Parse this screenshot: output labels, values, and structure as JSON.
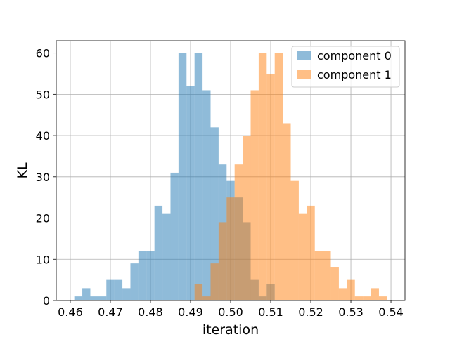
{
  "chart_data": {
    "type": "bar",
    "title": "",
    "xlabel": "iteration",
    "ylabel": "KL",
    "xlim": [
      0.4565,
      0.5435
    ],
    "ylim": [
      0,
      63
    ],
    "xticks": [
      "0.46",
      "0.47",
      "0.48",
      "0.49",
      "0.50",
      "0.51",
      "0.52",
      "0.53",
      "0.54"
    ],
    "xtick_values": [
      0.46,
      0.47,
      0.48,
      0.49,
      0.5,
      0.51,
      0.52,
      0.53,
      0.54
    ],
    "yticks": [
      "0",
      "10",
      "20",
      "30",
      "40",
      "50",
      "60"
    ],
    "ytick_values": [
      0,
      10,
      20,
      30,
      40,
      50,
      60
    ],
    "grid": true,
    "legend_position": "upper right",
    "bin_width": 0.002,
    "series": [
      {
        "name": "component 0",
        "color": "#1f77b4",
        "opacity": 0.5,
        "bin_start": 0.461,
        "counts": [
          1,
          3,
          1,
          1,
          5,
          5,
          3,
          9,
          12,
          12,
          23,
          21,
          31,
          60,
          52,
          60,
          51,
          42,
          33,
          29,
          25,
          19,
          5,
          1,
          4
        ]
      },
      {
        "name": "component 1",
        "color": "#ff7f0e",
        "opacity": 0.5,
        "bin_start": 0.491,
        "counts": [
          4,
          1,
          9,
          19,
          25,
          33,
          40,
          51,
          60,
          55,
          60,
          43,
          29,
          21,
          23,
          12,
          12,
          8,
          3,
          5,
          1,
          1,
          3,
          1
        ]
      }
    ]
  }
}
